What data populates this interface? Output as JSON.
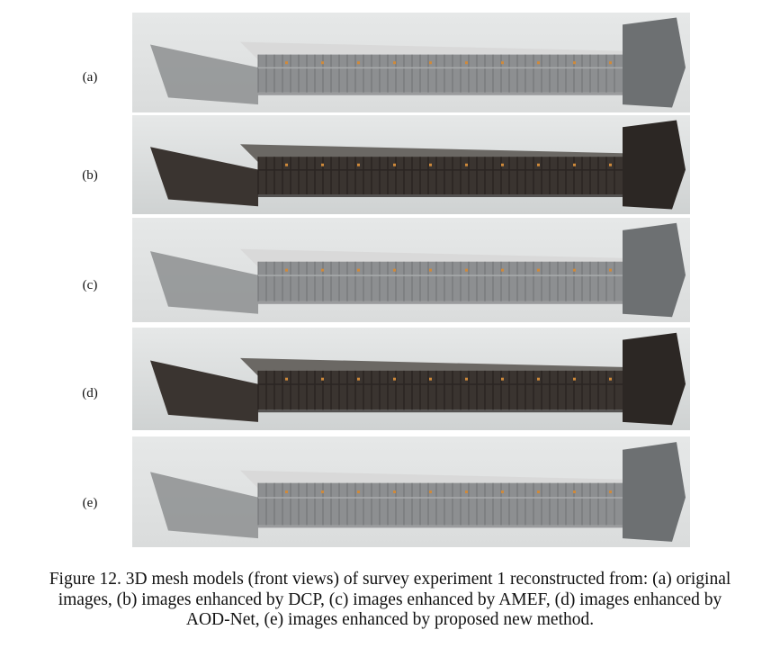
{
  "figure": {
    "panels": [
      {
        "label": "(a)",
        "variant": "light",
        "image_desc": "mesh-model-original"
      },
      {
        "label": "(b)",
        "variant": "dark",
        "image_desc": "mesh-model-dcp"
      },
      {
        "label": "(c)",
        "variant": "light",
        "image_desc": "mesh-model-amef"
      },
      {
        "label": "(d)",
        "variant": "dark",
        "image_desc": "mesh-model-aod-net"
      },
      {
        "label": "(e)",
        "variant": "light",
        "image_desc": "mesh-model-proposed"
      }
    ],
    "caption_lines": [
      "Figure 12. 3D mesh models (front views) of survey experiment 1 reconstructed from: (a) original",
      "images, (b) images enhanced by DCP, (c) images enhanced by AMEF, (d) images enhanced by",
      "AOD-Net, (e) images enhanced by proposed new method."
    ],
    "colors": {
      "panel_bg_light": "#dadcdc",
      "panel_bg_dark": "#cfd2d2",
      "mesh_light": "#8d8f91",
      "mesh_dark": "#3a3430",
      "roof_light": "#d9d9d9",
      "roof_dark": "#6b6864",
      "marker": "#d08a3a"
    }
  }
}
